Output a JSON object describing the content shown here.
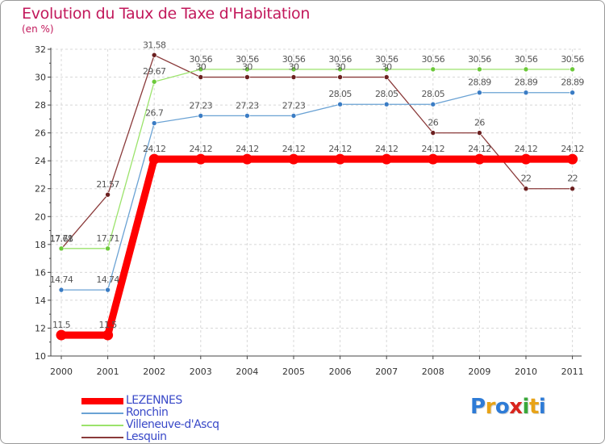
{
  "header": {
    "title": "Evolution du Taux de Taxe d'Habitation",
    "subtitle": "(en %)"
  },
  "logo": {
    "text": "Proxiti",
    "letters": [
      {
        "ch": "P",
        "color": "#2e7bd6"
      },
      {
        "ch": "r",
        "color": "#e8a317"
      },
      {
        "ch": "o",
        "color": "#2e7bd6"
      },
      {
        "ch": "x",
        "color": "#d9251d"
      },
      {
        "ch": "i",
        "color": "#3aa83a"
      },
      {
        "ch": "t",
        "color": "#e8a317"
      },
      {
        "ch": "i",
        "color": "#2e7bd6"
      }
    ]
  },
  "colors": {
    "title": "#c2185b",
    "legend_text": "#3949c8",
    "axis": "#444444",
    "grid": "#d8d8d8"
  },
  "chart_data": {
    "type": "line",
    "title": "Evolution du Taux de Taxe d'Habitation",
    "ylabel": "(en %)",
    "xlabel": "",
    "x": [
      2000,
      2001,
      2002,
      2003,
      2004,
      2005,
      2006,
      2007,
      2008,
      2009,
      2010,
      2011
    ],
    "ylim": [
      10,
      32
    ],
    "yticks": [
      10,
      12,
      14,
      16,
      18,
      20,
      22,
      24,
      26,
      28,
      30,
      32
    ],
    "grid": true,
    "legend_position": "bottom-left",
    "series": [
      {
        "name": "LEZENNES",
        "color": "#ff0000",
        "emphasis": true,
        "values": [
          11.5,
          11.5,
          24.12,
          24.12,
          24.12,
          24.12,
          24.12,
          24.12,
          24.12,
          24.12,
          24.12,
          24.12
        ]
      },
      {
        "name": "Ronchin",
        "color": "#6aa2d4",
        "marker": "#3a7cc4",
        "values": [
          14.74,
          14.74,
          26.7,
          27.23,
          27.23,
          27.23,
          28.05,
          28.05,
          28.05,
          28.89,
          28.89,
          28.89
        ]
      },
      {
        "name": "Villeneuve-d'Ascq",
        "color": "#9be36b",
        "marker": "#6cc93a",
        "values": [
          17.71,
          17.71,
          29.67,
          30.56,
          30.56,
          30.56,
          30.56,
          30.56,
          30.56,
          30.56,
          30.56,
          30.56
        ]
      },
      {
        "name": "Lesquin",
        "color": "#8a3a3a",
        "marker": "#6b1f1f",
        "values": [
          17.68,
          21.57,
          31.58,
          30,
          30,
          30,
          30,
          30,
          26,
          26,
          22,
          22
        ]
      }
    ],
    "point_labels": [
      [
        "11.5",
        "11.5",
        "24.12",
        "24.12",
        "24.12",
        "24.12",
        "24.12",
        "24.12",
        "24.12",
        "24.12",
        "24.12",
        "24.12"
      ],
      [
        "14.74",
        "14.74",
        "26.7",
        "27.23",
        "27.23",
        "27.23",
        "28.05",
        "28.05",
        "28.05",
        "28.89",
        "28.89",
        "28.89"
      ],
      [
        "17.71",
        "17.71",
        "29.67",
        "30.56",
        "30.56",
        "30.56",
        "30.56",
        "30.56",
        "30.56",
        "30.56",
        "30.56",
        "30.56"
      ],
      [
        "17.68",
        "21.57",
        "31.58",
        "30",
        "30",
        "30",
        "30",
        "30",
        "26",
        "26",
        "22",
        "22"
      ]
    ]
  }
}
